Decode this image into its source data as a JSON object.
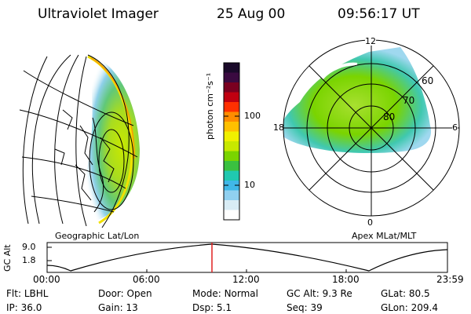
{
  "header": {
    "instrument": "Ultraviolet Imager",
    "date": "25 Aug 00",
    "time": "09:56:17 UT"
  },
  "colorbar": {
    "unit_label": "photon cm⁻²s⁻¹",
    "ticks": [
      "100",
      "10"
    ],
    "colors": [
      "#1a0a2a",
      "#3a0a40",
      "#7a0020",
      "#c00010",
      "#ff3000",
      "#ff8c00",
      "#ffc000",
      "#f0f000",
      "#c8e800",
      "#7ad400",
      "#3ac040",
      "#20c8b0",
      "#40b8e8",
      "#90d0f0",
      "#d8ecf5",
      "#ffffff"
    ]
  },
  "globe_panel": {
    "caption": "Geographic Lat/Lon"
  },
  "polar_panel": {
    "caption": "Apex MLat/MLT",
    "mlt_labels": {
      "top": "12",
      "right": "6",
      "bottom": "0",
      "left": "18"
    },
    "lat_labels": [
      "60",
      "70",
      "80"
    ]
  },
  "altitude_strip": {
    "ylabel": "GC Alt",
    "yticks": [
      "9.0",
      "1.8"
    ],
    "xticks": [
      "00:00",
      "06:00",
      "12:00",
      "18:00",
      "23:59"
    ],
    "marker_color": "#e02020"
  },
  "info": {
    "row1": [
      {
        "label": "Flt:",
        "value": "LBHL"
      },
      {
        "label": "Door:",
        "value": "Open"
      },
      {
        "label": "Mode:",
        "value": "Normal"
      },
      {
        "label": "GC Alt:",
        "value": "9.3 Re"
      },
      {
        "label": "GLat:",
        "value": "80.5"
      }
    ],
    "row2": [
      {
        "label": "IP:",
        "value": "36.0"
      },
      {
        "label": "Gain:",
        "value": "13"
      },
      {
        "label": "Dsp:",
        "value": "5.1"
      },
      {
        "label": "Seq:",
        "value": "39"
      },
      {
        "label": "GLon:",
        "value": "209.4"
      }
    ]
  }
}
